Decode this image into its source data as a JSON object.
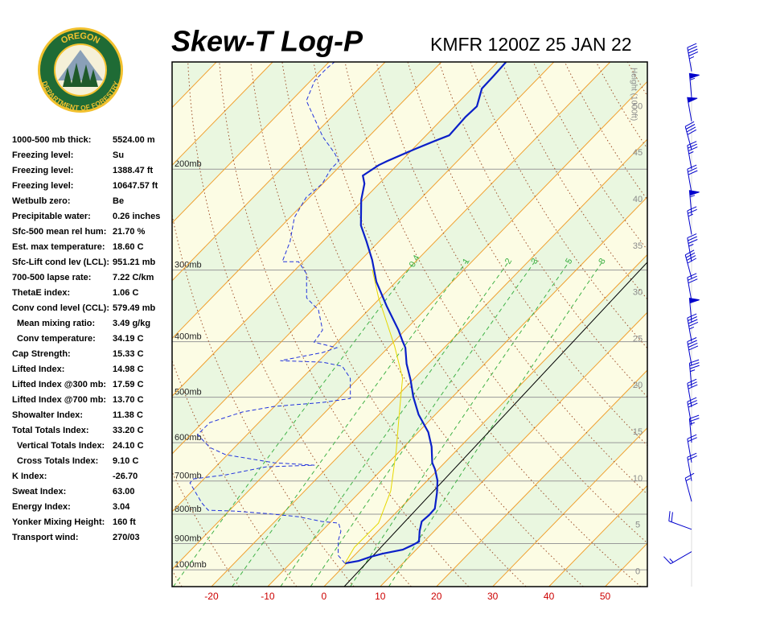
{
  "logo": {
    "top": "OREGON",
    "bottom": "DEPARTMENT OF FORESTRY"
  },
  "indices": [
    {
      "label": "1000-500 mb thick:",
      "value": "5524.00 m"
    },
    {
      "label": "Freezing level:",
      "value": "Su"
    },
    {
      "label": "Freezing level:",
      "value": "1388.47 ft"
    },
    {
      "label": "Freezing level:",
      "value": "10647.57 ft"
    },
    {
      "label": "Wetbulb zero:",
      "value": "Be"
    },
    {
      "label": "Precipitable water:",
      "value": "0.26 inches"
    },
    {
      "label": "Sfc-500 mean rel hum:",
      "value": "21.70 %"
    },
    {
      "label": "Est. max temperature:",
      "value": "18.60 C"
    },
    {
      "label": "Sfc-Lift cond lev (LCL):",
      "value": "951.21 mb"
    },
    {
      "label": "700-500 lapse rate:",
      "value": "7.22 C/km"
    },
    {
      "label": "ThetaE index:",
      "value": "1.06 C"
    },
    {
      "label": "Conv cond level (CCL):",
      "value": "579.49 mb"
    },
    {
      "label": "Mean mixing ratio:",
      "value": "3.49 g/kg",
      "indent": true
    },
    {
      "label": "Conv temperature:",
      "value": "34.19 C",
      "indent": true
    },
    {
      "label": "Cap Strength:",
      "value": "15.33 C"
    },
    {
      "label": "Lifted Index:",
      "value": "14.98 C"
    },
    {
      "label": "Lifted Index @300 mb:",
      "value": "17.59 C"
    },
    {
      "label": "Lifted Index @700 mb:",
      "value": "13.70 C"
    },
    {
      "label": "Showalter Index:",
      "value": "11.38 C"
    },
    {
      "label": "Total Totals Index:",
      "value": "33.20 C"
    },
    {
      "label": "Vertical Totals Index:",
      "value": "24.10 C",
      "indent": true
    },
    {
      "label": "Cross Totals Index:",
      "value": "9.10 C",
      "indent": true
    },
    {
      "label": "K Index:",
      "value": "-26.70"
    },
    {
      "label": "Sweat Index:",
      "value": "63.00"
    },
    {
      "label": "Energy Index:",
      "value": "3.04"
    },
    {
      "label": "Yonker Mixing Height:",
      "value": "160 ft"
    },
    {
      "label": "Transport wind:",
      "value": "270/03"
    }
  ],
  "chart_data": {
    "type": "skewt",
    "title": "Skew-T Log-P",
    "subtitle": "KMFR 1200Z 25 JAN 22",
    "xlim": [
      -27,
      57.5
    ],
    "xticks": [
      -20,
      -10,
      0,
      10,
      20,
      30,
      40,
      50
    ],
    "xtick_color": "#cc0000",
    "ylim": [
      1070,
      130
    ],
    "log_y": true,
    "yticks": [
      {
        "value": 200,
        "label": "200mb"
      },
      {
        "value": 300,
        "label": "300mb"
      },
      {
        "value": 400,
        "label": "400mb"
      },
      {
        "value": 500,
        "label": "500mb"
      },
      {
        "value": 600,
        "label": "600mb"
      },
      {
        "value": 700,
        "label": "700mb"
      },
      {
        "value": 800,
        "label": "800mb"
      },
      {
        "value": 900,
        "label": "900mb"
      },
      {
        "value": 1000,
        "label": "1000mb"
      }
    ],
    "y2label": "Height (1000ft)",
    "y2lim": [
      -1.6,
      54.8
    ],
    "y2ticks": [
      0,
      5,
      10,
      15,
      20,
      25,
      30,
      35,
      40,
      45,
      50
    ],
    "isotherms": [
      -120,
      -110,
      -100,
      -90,
      -80,
      -70,
      -60,
      -50,
      -40,
      -30,
      -20,
      -10,
      0,
      10,
      20,
      30,
      40,
      50,
      60
    ],
    "isotherm_color": "#f0a030",
    "band_colors": [
      "#eaf7e0",
      "#fcfce4"
    ],
    "dry_adiabats": [
      -30,
      -20,
      -10,
      0,
      10,
      20,
      30,
      40,
      50,
      60,
      70,
      80,
      90,
      100,
      110,
      120,
      130,
      140,
      150,
      160,
      170
    ],
    "dry_adiabat_color": "#a0522d",
    "mixing_ratios": [
      0.4,
      1,
      2,
      3,
      5,
      8
    ],
    "mixing_ratio_color": "#3cb043",
    "reference_line": {
      "color": "#000000",
      "pressure": [
        1070,
        290
      ],
      "temperature": [
        3.6,
        1.3
      ]
    },
    "series": [
      {
        "color": "#0a1fc8",
        "style": "solid",
        "pressure": [
          974.5,
          965,
          949.6,
          937.4,
          922.4,
          904.7,
          893,
          856.3,
          823.7,
          802.7,
          782.2,
          733.2,
          698.5,
          667.6,
          650.6,
          609.9,
          575.4,
          535.9,
          499.1,
          466.4,
          437.2,
          409.8,
          399.4,
          381.7,
          346.4,
          314.4,
          288.1,
          267.5,
          250.7,
          226.1,
          212,
          205.2,
          196.8,
          193.6,
          184.4,
          178.6,
          174.6,
          162.1,
          155.4,
          144.7,
          137.9,
          130.1
        ],
        "temperature": [
          -0.3,
          1.7,
          3.1,
          4.7,
          7.6,
          8.6,
          9.1,
          7.4,
          6.1,
          6.3,
          6.2,
          3.8,
          1.8,
          -0.6,
          -2.2,
          -5.1,
          -8.2,
          -13,
          -17,
          -20.4,
          -23.9,
          -26.9,
          -28.5,
          -31.2,
          -37.5,
          -43.5,
          -48,
          -52.2,
          -56,
          -60.4,
          -62.6,
          -64.3,
          -63.3,
          -62.5,
          -59.6,
          -57.5,
          -55.9,
          -56.2,
          -56,
          -58.2,
          -58.3,
          -58.5
        ]
      },
      {
        "color": "#2233dd",
        "style": "dashed",
        "pressure": [
          974.5,
          943.5,
          890.1,
          856.3,
          829,
          823.7,
          807.9,
          797.6,
          789.8,
          787.3,
          764.7,
          705.3,
          694.1,
          682.9,
          661.2,
          656.9,
          650.6,
          629.9,
          611.8,
          581,
          553.5,
          530.7,
          518.9,
          510.6,
          502.4,
          463.4,
          441.5,
          434.3,
          431.6,
          417.8,
          409.8,
          400.7,
          381.7,
          352.1,
          335.4,
          304.4,
          290,
          290,
          267.5,
          242.8,
          223.9,
          212,
          200,
          193.6,
          187.5,
          175.7,
          151.9,
          140.1,
          133.5,
          130.1
        ],
        "temperature": [
          -0.3,
          -2.9,
          -5.4,
          -6.6,
          -8.4,
          -11.6,
          -16.7,
          -23,
          -29.1,
          -33.8,
          -36.2,
          -41.8,
          -41.8,
          -36.8,
          -31,
          -22.7,
          -30.3,
          -40.3,
          -44.4,
          -48.8,
          -48.7,
          -44.8,
          -40.1,
          -32.2,
          -27.9,
          -31.4,
          -34.9,
          -39.1,
          -46.9,
          -40.8,
          -39.1,
          -44.1,
          -44.7,
          -48.9,
          -53.1,
          -57.3,
          -60.8,
          -63.7,
          -65.8,
          -69.2,
          -70.6,
          -70.1,
          -71.1,
          -71.1,
          -73.2,
          -78.1,
          -87.3,
          -89.3,
          -89.3,
          -89
        ]
      },
      {
        "color": "#e6d800",
        "style": "solid",
        "pressure": [
          974.5,
          913.5,
          829,
          728.5,
          682.9,
          619.8,
          544.6,
          494.3,
          463.4,
          434.3,
          407.2,
          369.5,
          335.4,
          299.5
        ],
        "temperature": [
          -0.3,
          -1.4,
          -1.3,
          -4.7,
          -7.1,
          -10.7,
          -15.8,
          -19.6,
          -22.1,
          -25.6,
          -29.1,
          -34.7,
          -40.3,
          -46.3
        ]
      }
    ],
    "winds": {
      "color": "#0000cc",
      "pressure": [
        135,
        150,
        165,
        185,
        200,
        220,
        240,
        260,
        290,
        310,
        340,
        370,
        400,
        440,
        480,
        520,
        560,
        600,
        650,
        700,
        760,
        850,
        930
      ],
      "direction": [
        350,
        355,
        350,
        345,
        350,
        350,
        355,
        350,
        350,
        345,
        350,
        355,
        350,
        350,
        355,
        350,
        350,
        355,
        350,
        350,
        345,
        290,
        240
      ],
      "speed": [
        45,
        55,
        50,
        40,
        35,
        30,
        55,
        25,
        35,
        40,
        30,
        50,
        45,
        40,
        35,
        30,
        30,
        25,
        20,
        20,
        15,
        20,
        15
      ]
    }
  }
}
